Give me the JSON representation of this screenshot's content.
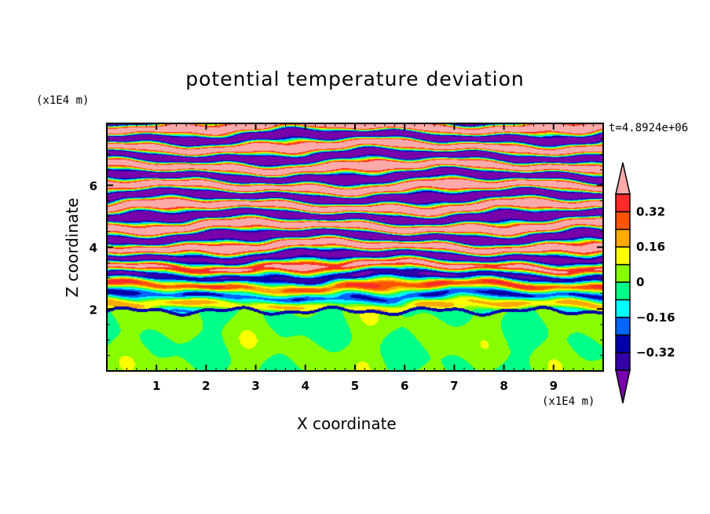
{
  "chart_data": {
    "type": "heatmap",
    "title": "potential temperature deviation",
    "xlabel": "X coordinate",
    "ylabel": "Z coordinate",
    "x_unit_label": "(x1E4 m)",
    "y_unit_label": "(x1E4 m)",
    "time_label": "t=4.8924e+06",
    "xlim": [
      0,
      10
    ],
    "ylim": [
      0,
      8
    ],
    "x_ticks": [
      "1",
      "2",
      "3",
      "4",
      "5",
      "6",
      "7",
      "8",
      "9"
    ],
    "y_ticks": [
      "2",
      "4",
      "6"
    ],
    "x_tick_values": [
      1,
      2,
      3,
      4,
      5,
      6,
      7,
      8,
      9
    ],
    "y_tick_values": [
      2,
      4,
      6
    ],
    "colorbar": {
      "levels": [
        -0.4,
        -0.32,
        -0.24,
        -0.16,
        -0.08,
        0,
        0.08,
        0.16,
        0.24,
        0.32,
        0.4
      ],
      "labels": [
        "0.32",
        "0.16",
        "0",
        "-0.16",
        "-0.32"
      ],
      "label_values": [
        0.32,
        0.16,
        0,
        -0.16,
        -0.32
      ],
      "colors": [
        "#3300aa",
        "#0000aa",
        "#0066ff",
        "#00ffff",
        "#00ff88",
        "#88ff00",
        "#ffff00",
        "#ffaa00",
        "#ff5500",
        "#ff2a2a"
      ],
      "over_color": "#ffaaaa",
      "under_color": "#7700aa",
      "extend": "both"
    },
    "field_description_values": {
      "boundary_layer_top_z": 2,
      "below_range": [
        -0.08,
        0.08
      ],
      "above_range": [
        -0.4,
        0.4
      ]
    }
  }
}
